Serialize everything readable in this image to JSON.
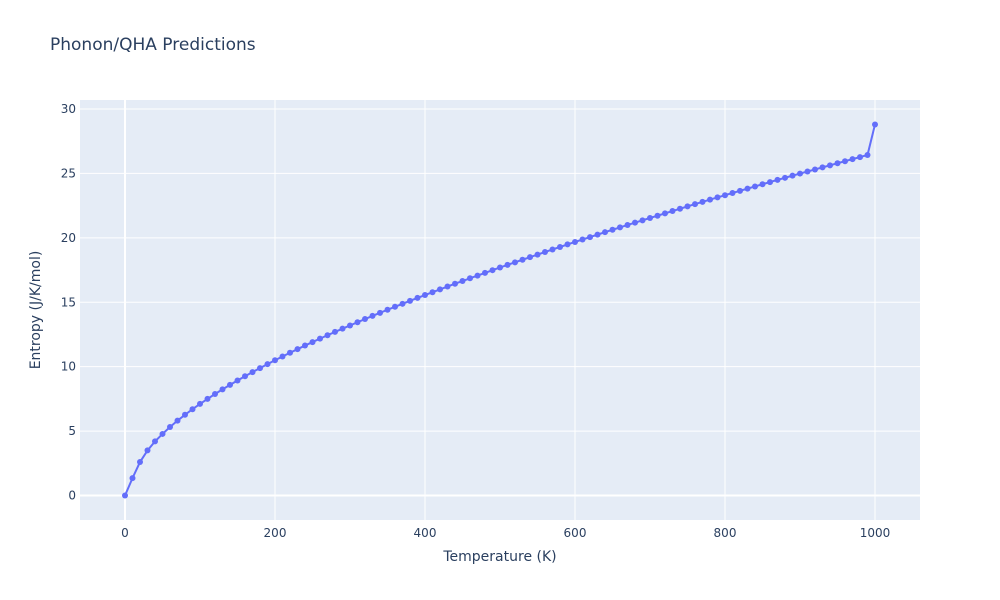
{
  "chart_data": {
    "type": "line",
    "mode": "lines+markers",
    "title": "Phonon/QHA Predictions",
    "xlabel": "Temperature (K)",
    "ylabel": "Entropy (J/K/mol)",
    "xlim": [
      -60,
      1060
    ],
    "ylim": [
      -1.9,
      30.7
    ],
    "xticks": [
      0,
      200,
      400,
      600,
      800,
      1000
    ],
    "yticks": [
      0,
      5,
      10,
      15,
      20,
      25,
      30
    ],
    "grid": true,
    "colors": {
      "series": "#636efa",
      "plot_bg": "#e5ecf6",
      "grid": "#ffffff",
      "text": "#2a3f5f"
    },
    "x": [
      0,
      10,
      20,
      30,
      40,
      50,
      60,
      70,
      80,
      90,
      100,
      110,
      120,
      130,
      140,
      150,
      160,
      170,
      180,
      190,
      200,
      210,
      220,
      230,
      240,
      250,
      260,
      270,
      280,
      290,
      300,
      310,
      320,
      330,
      340,
      350,
      360,
      370,
      380,
      390,
      400,
      410,
      420,
      430,
      440,
      450,
      460,
      470,
      480,
      490,
      500,
      510,
      520,
      530,
      540,
      550,
      560,
      570,
      580,
      590,
      600,
      610,
      620,
      630,
      640,
      650,
      660,
      670,
      680,
      690,
      700,
      710,
      720,
      730,
      740,
      750,
      760,
      770,
      780,
      790,
      800,
      810,
      820,
      830,
      840,
      850,
      860,
      870,
      880,
      890,
      900,
      910,
      920,
      930,
      940,
      950,
      960,
      970,
      980,
      990,
      1000
    ],
    "y": [
      0,
      1.35,
      2.6,
      3.5,
      4.2,
      4.78,
      5.32,
      5.81,
      6.27,
      6.7,
      7.11,
      7.5,
      7.88,
      8.24,
      8.59,
      8.93,
      9.26,
      9.58,
      9.89,
      10.2,
      10.5,
      10.79,
      11.08,
      11.36,
      11.64,
      11.91,
      12.18,
      12.44,
      12.7,
      12.95,
      13.2,
      13.45,
      13.7,
      13.94,
      14.18,
      14.42,
      14.65,
      14.88,
      15.11,
      15.34,
      15.56,
      15.78,
      16.0,
      16.22,
      16.44,
      16.65,
      16.86,
      17.07,
      17.28,
      17.49,
      17.7,
      17.9,
      18.1,
      18.3,
      18.5,
      18.7,
      18.9,
      19.1,
      19.29,
      19.49,
      19.68,
      19.87,
      20.06,
      20.25,
      20.44,
      20.63,
      20.81,
      21.0,
      21.18,
      21.36,
      21.54,
      21.72,
      21.9,
      22.08,
      22.26,
      22.44,
      22.62,
      22.79,
      22.97,
      23.14,
      23.31,
      23.48,
      23.65,
      23.82,
      23.99,
      24.16,
      24.33,
      24.5,
      24.66,
      24.83,
      24.99,
      25.15,
      25.31,
      25.47,
      25.63,
      25.79,
      25.95,
      26.11,
      26.27,
      26.43,
      28.8
    ]
  }
}
